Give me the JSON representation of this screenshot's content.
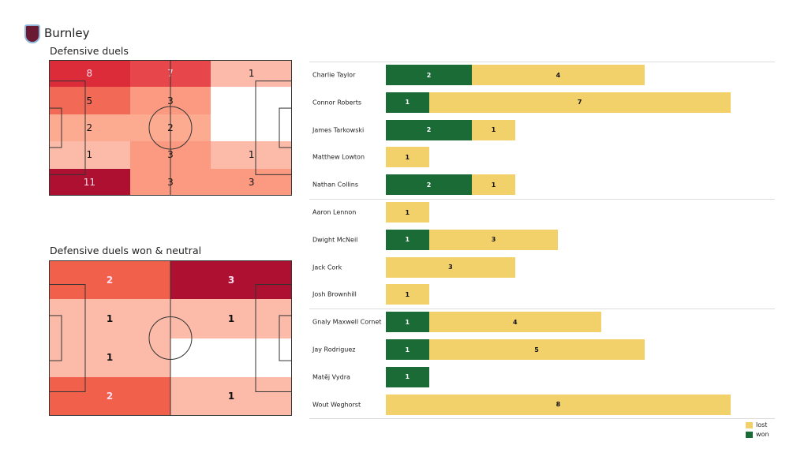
{
  "header": {
    "team": "Burnley"
  },
  "colors": {
    "won": "#1a6b35",
    "lost": "#f2d16b"
  },
  "chart_data": [
    {
      "type": "heatmap",
      "title": "Defensive duels",
      "grid": [
        [
          8,
          7,
          1
        ],
        [
          5,
          3,
          0
        ],
        [
          2,
          2,
          0
        ],
        [
          1,
          3,
          1
        ],
        [
          11,
          3,
          3
        ]
      ],
      "colors": [
        [
          "#dc2c3a",
          "#e7474a",
          "#fcbbaa"
        ],
        [
          "#f26a55",
          "#fb9a80",
          "#ffffff"
        ],
        [
          "#fcab90",
          "#fcab90",
          "#ffffff"
        ],
        [
          "#fcbba9",
          "#fb9a80",
          "#fcbba9"
        ],
        [
          "#ae1031",
          "#fb9a80",
          "#fb9a80"
        ]
      ]
    },
    {
      "type": "heatmap",
      "title": "Defensive duels won & neutral",
      "grid": [
        [
          2,
          3
        ],
        [
          1,
          1
        ],
        [
          1,
          0
        ],
        [
          2,
          1
        ]
      ],
      "colors": [
        [
          "#f0604a",
          "#ae1031"
        ],
        [
          "#fcbba9",
          "#fcbba9"
        ],
        [
          "#fcbba9",
          "#ffffff"
        ],
        [
          "#f0604a",
          "#fcbba9"
        ]
      ]
    },
    {
      "type": "bar",
      "stacked": true,
      "legend": [
        "lost",
        "won"
      ],
      "legend_position": "bottom-right",
      "groups": [
        [
          {
            "name": "Charlie Taylor",
            "won": 2,
            "lost": 4
          },
          {
            "name": "Connor Roberts",
            "won": 1,
            "lost": 7
          },
          {
            "name": "James  Tarkowski",
            "won": 2,
            "lost": 1
          },
          {
            "name": "Matthew Lowton",
            "won": 0,
            "lost": 1
          },
          {
            "name": "Nathan Collins",
            "won": 2,
            "lost": 1
          }
        ],
        [
          {
            "name": "Aaron  Lennon",
            "won": 0,
            "lost": 1
          },
          {
            "name": "Dwight McNeil",
            "won": 1,
            "lost": 3
          },
          {
            "name": "Jack Cork",
            "won": 0,
            "lost": 3
          },
          {
            "name": "Josh Brownhill",
            "won": 0,
            "lost": 1
          }
        ],
        [
          {
            "name": "Gnaly Maxwell Cornet",
            "won": 1,
            "lost": 4
          },
          {
            "name": "Jay Rodriguez",
            "won": 1,
            "lost": 5
          },
          {
            "name": "Matěj Vydra",
            "won": 1,
            "lost": 0
          },
          {
            "name": "Wout Weghorst",
            "won": 0,
            "lost": 8
          }
        ]
      ]
    }
  ]
}
